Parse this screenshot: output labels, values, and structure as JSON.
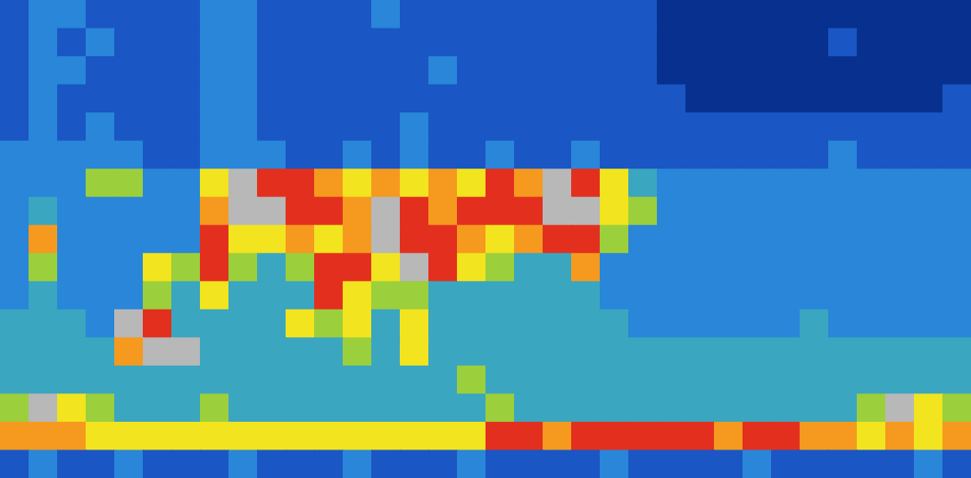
{
  "chart_data": {
    "type": "heatmap",
    "tick_labels": false,
    "cells": [
      [
        1,
        2,
        2,
        1,
        1,
        1,
        1,
        2,
        2,
        1,
        1,
        1,
        1,
        2,
        1,
        1,
        1,
        1,
        1,
        1,
        1,
        1,
        1,
        0,
        0,
        0,
        0,
        0,
        0,
        0,
        0,
        0,
        0,
        0
      ],
      [
        1,
        2,
        1,
        2,
        1,
        1,
        1,
        2,
        2,
        1,
        1,
        1,
        1,
        1,
        1,
        1,
        1,
        1,
        1,
        1,
        1,
        1,
        1,
        0,
        0,
        0,
        0,
        0,
        0,
        1,
        0,
        0,
        0,
        0
      ],
      [
        1,
        2,
        2,
        1,
        1,
        1,
        1,
        2,
        2,
        1,
        1,
        1,
        1,
        1,
        1,
        2,
        1,
        1,
        1,
        1,
        1,
        1,
        1,
        0,
        0,
        0,
        0,
        0,
        0,
        0,
        0,
        0,
        0,
        0
      ],
      [
        1,
        2,
        1,
        1,
        1,
        1,
        1,
        2,
        2,
        1,
        1,
        1,
        1,
        1,
        1,
        1,
        1,
        1,
        1,
        1,
        1,
        1,
        1,
        1,
        0,
        0,
        0,
        0,
        0,
        0,
        0,
        0,
        0,
        1
      ],
      [
        1,
        2,
        1,
        2,
        1,
        1,
        1,
        2,
        2,
        1,
        1,
        1,
        1,
        1,
        2,
        1,
        1,
        1,
        1,
        1,
        1,
        1,
        1,
        1,
        1,
        1,
        1,
        1,
        1,
        1,
        1,
        1,
        1,
        1
      ],
      [
        2,
        2,
        2,
        2,
        2,
        1,
        1,
        2,
        2,
        2,
        1,
        1,
        2,
        1,
        2,
        1,
        1,
        2,
        1,
        1,
        2,
        1,
        1,
        1,
        1,
        1,
        1,
        1,
        1,
        2,
        1,
        1,
        1,
        1
      ],
      [
        2,
        2,
        2,
        4,
        4,
        2,
        2,
        5,
        8,
        7,
        7,
        6,
        5,
        6,
        5,
        6,
        5,
        7,
        6,
        8,
        7,
        5,
        3,
        2,
        2,
        2,
        2,
        2,
        2,
        2,
        2,
        2,
        2,
        2
      ],
      [
        2,
        3,
        2,
        2,
        2,
        2,
        2,
        6,
        8,
        8,
        7,
        7,
        6,
        8,
        7,
        6,
        7,
        7,
        7,
        8,
        8,
        5,
        4,
        2,
        2,
        2,
        2,
        2,
        2,
        2,
        2,
        2,
        2,
        2
      ],
      [
        2,
        6,
        2,
        2,
        2,
        2,
        2,
        7,
        5,
        5,
        6,
        5,
        6,
        8,
        7,
        7,
        6,
        5,
        6,
        7,
        7,
        4,
        2,
        2,
        2,
        2,
        2,
        2,
        2,
        2,
        2,
        2,
        2,
        2
      ],
      [
        2,
        4,
        2,
        2,
        2,
        5,
        4,
        7,
        4,
        3,
        4,
        7,
        7,
        5,
        8,
        7,
        5,
        4,
        3,
        3,
        6,
        2,
        2,
        2,
        2,
        2,
        2,
        2,
        2,
        2,
        2,
        2,
        2,
        2
      ],
      [
        2,
        3,
        2,
        2,
        2,
        4,
        3,
        5,
        3,
        3,
        3,
        7,
        5,
        4,
        4,
        3,
        3,
        3,
        3,
        3,
        3,
        2,
        2,
        2,
        2,
        2,
        2,
        2,
        2,
        2,
        2,
        2,
        2,
        2
      ],
      [
        3,
        3,
        3,
        2,
        8,
        7,
        3,
        3,
        3,
        3,
        5,
        4,
        5,
        3,
        5,
        3,
        3,
        3,
        3,
        3,
        3,
        3,
        2,
        2,
        2,
        2,
        2,
        2,
        3,
        2,
        2,
        2,
        2,
        2
      ],
      [
        3,
        3,
        3,
        3,
        6,
        8,
        8,
        3,
        3,
        3,
        3,
        3,
        4,
        3,
        5,
        3,
        3,
        3,
        3,
        3,
        3,
        3,
        3,
        3,
        3,
        3,
        3,
        3,
        3,
        3,
        3,
        3,
        3,
        3
      ],
      [
        3,
        3,
        3,
        3,
        3,
        3,
        3,
        3,
        3,
        3,
        3,
        3,
        3,
        3,
        3,
        3,
        4,
        3,
        3,
        3,
        3,
        3,
        3,
        3,
        3,
        3,
        3,
        3,
        3,
        3,
        3,
        3,
        3,
        3
      ],
      [
        4,
        8,
        5,
        4,
        3,
        3,
        3,
        4,
        3,
        3,
        3,
        3,
        3,
        3,
        3,
        3,
        3,
        4,
        3,
        3,
        3,
        3,
        3,
        3,
        3,
        3,
        3,
        3,
        3,
        3,
        4,
        8,
        5,
        4
      ],
      [
        6,
        6,
        6,
        5,
        5,
        5,
        5,
        5,
        5,
        5,
        5,
        5,
        5,
        5,
        5,
        5,
        5,
        7,
        7,
        6,
        7,
        7,
        7,
        7,
        7,
        6,
        7,
        7,
        6,
        6,
        5,
        6,
        5,
        6
      ],
      [
        1,
        2,
        1,
        1,
        2,
        1,
        1,
        1,
        2,
        1,
        1,
        1,
        2,
        1,
        1,
        1,
        2,
        1,
        1,
        1,
        1,
        2,
        1,
        1,
        1,
        1,
        2,
        1,
        1,
        1,
        1,
        1,
        2,
        1
      ]
    ]
  }
}
